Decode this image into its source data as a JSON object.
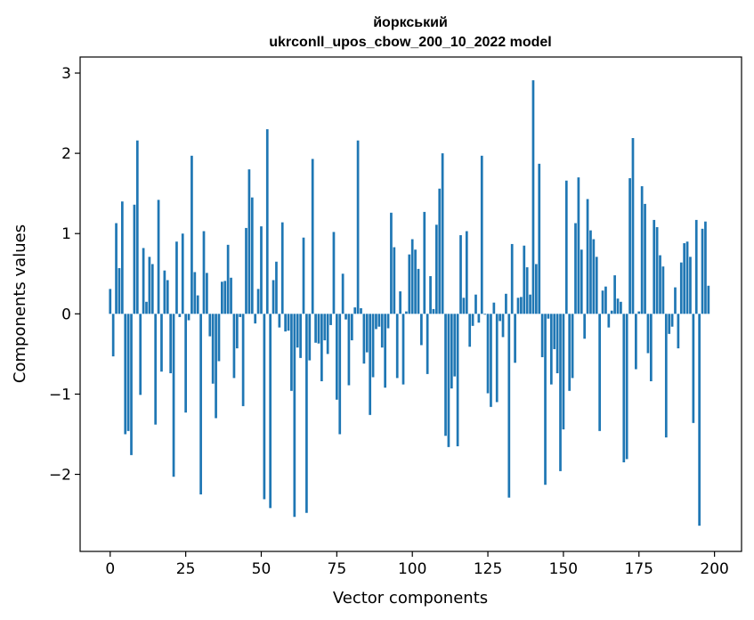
{
  "chart_data": {
    "type": "bar",
    "title_line1": "йоркський",
    "title_line2": "ukrconll_upos_cbow_200_10_2022 model",
    "xlabel": "Vector components",
    "ylabel": "Components values",
    "xlim": [
      -9.95,
      208.95
    ],
    "ylim": [
      -2.96,
      3.2
    ],
    "xticks": [
      0,
      25,
      50,
      75,
      100,
      125,
      150,
      175,
      200
    ],
    "xtick_labels": [
      "0",
      "25",
      "50",
      "75",
      "100",
      "125",
      "150",
      "175",
      "200"
    ],
    "yticks": [
      -2,
      -1,
      0,
      1,
      2,
      3
    ],
    "ytick_labels": [
      "−2",
      "−1",
      "0",
      "1",
      "2",
      "3"
    ],
    "grid": false,
    "bar_color": "#1f77b4",
    "values": [
      0.31,
      -0.53,
      1.13,
      0.57,
      1.4,
      -1.5,
      -1.46,
      -1.76,
      1.36,
      2.16,
      -1.01,
      0.82,
      0.15,
      0.71,
      0.62,
      -1.38,
      1.42,
      -0.72,
      0.54,
      0.42,
      -0.74,
      -2.03,
      0.9,
      -0.04,
      1.0,
      -1.23,
      -0.08,
      1.97,
      0.52,
      0.23,
      -2.25,
      1.03,
      0.51,
      -0.28,
      -0.87,
      -1.3,
      -0.59,
      0.4,
      0.41,
      0.86,
      0.45,
      -0.8,
      -0.43,
      -0.04,
      -1.15,
      1.07,
      1.8,
      1.45,
      -0.12,
      0.31,
      1.09,
      -2.31,
      2.3,
      -2.42,
      0.42,
      0.65,
      -0.17,
      1.14,
      -0.22,
      -0.21,
      -0.96,
      -2.53,
      -0.42,
      -0.55,
      0.95,
      -2.48,
      -0.58,
      1.93,
      -0.36,
      -0.37,
      -0.84,
      -0.33,
      -0.5,
      -0.14,
      1.02,
      -1.07,
      -1.5,
      0.5,
      -0.07,
      -0.89,
      -0.33,
      0.08,
      2.16,
      0.07,
      -0.62,
      -0.48,
      -1.26,
      -0.79,
      -0.19,
      -0.16,
      -0.42,
      -0.92,
      -0.18,
      1.26,
      0.83,
      -0.8,
      0.28,
      -0.88,
      0.03,
      0.74,
      0.93,
      0.8,
      0.56,
      -0.39,
      1.27,
      -0.75,
      0.47,
      0.06,
      1.11,
      1.56,
      2.0,
      -1.52,
      -1.66,
      -0.93,
      -0.78,
      -1.65,
      0.98,
      0.2,
      1.03,
      -0.41,
      -0.15,
      0.24,
      -0.11,
      1.97,
      -0.01,
      -0.99,
      -1.16,
      0.14,
      -1.1,
      -0.09,
      -0.29,
      0.25,
      -2.29,
      0.87,
      -0.61,
      0.2,
      0.21,
      0.85,
      0.58,
      0.24,
      2.91,
      0.62,
      1.87,
      -0.54,
      -2.13,
      -0.06,
      -0.88,
      -0.44,
      -0.74,
      -1.96,
      -1.44,
      1.66,
      -0.96,
      -0.8,
      1.13,
      1.7,
      0.8,
      -0.31,
      1.43,
      1.04,
      0.93,
      0.71,
      -1.46,
      0.29,
      0.34,
      -0.17,
      0.04,
      0.48,
      0.19,
      0.15,
      -1.85,
      -1.81,
      1.69,
      2.19,
      -0.69,
      0.03,
      1.59,
      1.37,
      -0.49,
      -0.84,
      1.17,
      1.08,
      0.73,
      0.59,
      -1.54,
      -0.25,
      -0.16,
      0.33,
      -0.43,
      0.64,
      0.88,
      0.9,
      0.71,
      -1.36,
      1.17,
      -2.64,
      1.06,
      1.15,
      0.35
    ]
  }
}
